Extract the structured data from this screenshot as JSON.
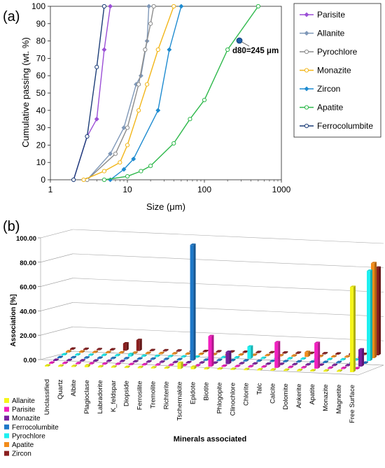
{
  "panel_a": {
    "label": "(a)",
    "chart_data": {
      "type": "line",
      "xlabel": "Size (μm)",
      "ylabel": "Cumulative passing (wt. %)",
      "xscale": "log",
      "xlim": [
        1,
        1000
      ],
      "ylim": [
        0,
        100
      ],
      "xticks": [
        "1",
        "10",
        "100",
        "1000"
      ],
      "yticks": [
        "0",
        "10",
        "20",
        "30",
        "40",
        "50",
        "60",
        "70",
        "80",
        "90",
        "100"
      ],
      "grid": false,
      "legend_position": "right",
      "annotation": {
        "text": "d80=245 μm",
        "x": 280,
        "y": 80,
        "color": "#1f5fa8"
      },
      "series": [
        {
          "name": "Parisite",
          "color": "#9b4fd6",
          "marker": "diamond",
          "points": [
            [
              2,
              0
            ],
            [
              3,
              25
            ],
            [
              4,
              35
            ],
            [
              5,
              75
            ],
            [
              6,
              100
            ]
          ]
        },
        {
          "name": "Allanite",
          "color": "#7f98b8",
          "marker": "diamond",
          "points": [
            [
              3,
              0
            ],
            [
              6,
              15
            ],
            [
              9,
              30
            ],
            [
              13,
              55
            ],
            [
              15,
              60
            ],
            [
              18,
              80
            ],
            [
              19,
              100
            ]
          ]
        },
        {
          "name": "Pyrochlore",
          "color": "#8c8c8c",
          "marker": "circle",
          "points": [
            [
              3,
              0
            ],
            [
              7,
              15
            ],
            [
              10,
              30
            ],
            [
              14,
              55
            ],
            [
              17,
              75
            ],
            [
              20,
              90
            ],
            [
              22,
              100
            ]
          ]
        },
        {
          "name": "Monazite",
          "color": "#f2b619",
          "marker": "circle",
          "points": [
            [
              2.7,
              0
            ],
            [
              5,
              5
            ],
            [
              8,
              10
            ],
            [
              10,
              20
            ],
            [
              14,
              40
            ],
            [
              18,
              55
            ],
            [
              25,
              75
            ],
            [
              40,
              100
            ]
          ]
        },
        {
          "name": "Zircon",
          "color": "#1e8bd0",
          "marker": "diamond",
          "points": [
            [
              6,
              0
            ],
            [
              9,
              6
            ],
            [
              12,
              12
            ],
            [
              25,
              40
            ],
            [
              35,
              75
            ],
            [
              50,
              100
            ]
          ]
        },
        {
          "name": "Apatite",
          "color": "#2db84a",
          "marker": "circle",
          "points": [
            [
              5,
              0
            ],
            [
              10,
              2
            ],
            [
              15,
              5
            ],
            [
              20,
              8
            ],
            [
              40,
              21
            ],
            [
              65,
              35
            ],
            [
              100,
              46
            ],
            [
              200,
              75
            ],
            [
              500,
              100
            ]
          ]
        },
        {
          "name": "Ferrocolumbite",
          "color": "#1c3d78",
          "marker": "circle",
          "points": [
            [
              2,
              0
            ],
            [
              3,
              25
            ],
            [
              4,
              65
            ],
            [
              5,
              100
            ]
          ]
        }
      ]
    }
  },
  "panel_b": {
    "label": "(b)",
    "chart_data": {
      "type": "bar3d",
      "xlabel": "Minerals associated",
      "ylabel": "Association [%]",
      "ylim": [
        0,
        100
      ],
      "yticks": [
        "0.00",
        "20.00",
        "40.00",
        "60.00",
        "80.00",
        "100.00"
      ],
      "legend_position": "bottom-left",
      "categories": [
        "Unclassified",
        "Quartz",
        "Albite",
        "Plagioclase",
        "Labradorite",
        "K_feldspar",
        "Diopside",
        "Ferrosilite",
        "Tremolite",
        "Richterite",
        "Tschermakite",
        "Epidote",
        "Biotite",
        "Phlogopite",
        "Clinochlore",
        "Chlorite",
        "Talc",
        "Calcite",
        "Dolomite",
        "Ankerite",
        "Apatite",
        "Monazite",
        "Magnetite",
        "Free Surface"
      ],
      "series": [
        {
          "name": "Allanite",
          "color": "#f5f51a",
          "values": [
            0.2,
            0.5,
            0.3,
            1.5,
            0.3,
            0.3,
            0.5,
            0.2,
            0.2,
            0.2,
            5,
            2,
            0.5,
            0.3,
            0.2,
            0.3,
            0.2,
            0.5,
            0.2,
            0.2,
            0.3,
            0.2,
            0.2,
            70
          ]
        },
        {
          "name": "Parisite",
          "color": "#f21fbf",
          "values": [
            0.2,
            0.3,
            0.3,
            0.3,
            0.3,
            0.3,
            0.3,
            0.2,
            0.2,
            0.2,
            0.5,
            0.3,
            25,
            0.5,
            0.3,
            0.3,
            0.3,
            21,
            0.5,
            0.5,
            21,
            0.5,
            0.3,
            0.5
          ]
        },
        {
          "name": "Monazite",
          "color": "#7a1fa0",
          "values": [
            0.2,
            0.3,
            0.3,
            0.3,
            0.3,
            0.3,
            0.3,
            0.2,
            0.2,
            0.2,
            0.5,
            0.3,
            0.5,
            10,
            0.3,
            0.3,
            0.3,
            0.5,
            0.5,
            0.5,
            0.5,
            0.5,
            0.3,
            14
          ]
        },
        {
          "name": "Ferrocolumbite",
          "color": "#1e78c8",
          "values": [
            0.2,
            0.3,
            0.3,
            0.3,
            0.3,
            0.3,
            0.3,
            0.2,
            0.2,
            0.2,
            95,
            0.3,
            0.3,
            0.3,
            0.3,
            0.3,
            0.3,
            0.3,
            0.3,
            0.3,
            0.3,
            0.3,
            0.3,
            0.3
          ]
        },
        {
          "name": "Pyrochlore",
          "color": "#1ef0f0",
          "values": [
            0.5,
            0.5,
            0.5,
            0.5,
            0.5,
            2,
            0.5,
            0.5,
            0.3,
            0.3,
            0.5,
            0.5,
            0.5,
            0.5,
            10,
            0.5,
            0.5,
            0.5,
            0.5,
            0.5,
            0.5,
            0.5,
            0.5,
            74
          ]
        },
        {
          "name": "Apatite",
          "color": "#f28c1a",
          "values": [
            1,
            1,
            0.8,
            0.5,
            0.5,
            0.5,
            0.5,
            0.5,
            0.3,
            0.3,
            0.5,
            0.5,
            0.5,
            0.5,
            0.5,
            0.5,
            0.5,
            0.5,
            4,
            0.5,
            0.5,
            0.5,
            0.3,
            78
          ]
        },
        {
          "name": "Zircon",
          "color": "#8a2020",
          "values": [
            0.2,
            0.3,
            0.3,
            0.3,
            6,
            9,
            0.5,
            0.3,
            0.3,
            0.3,
            0.3,
            0.3,
            0.3,
            0.3,
            0.3,
            0.3,
            0.3,
            0.3,
            0.3,
            0.3,
            0.3,
            0.3,
            0.3,
            72
          ]
        }
      ]
    }
  }
}
